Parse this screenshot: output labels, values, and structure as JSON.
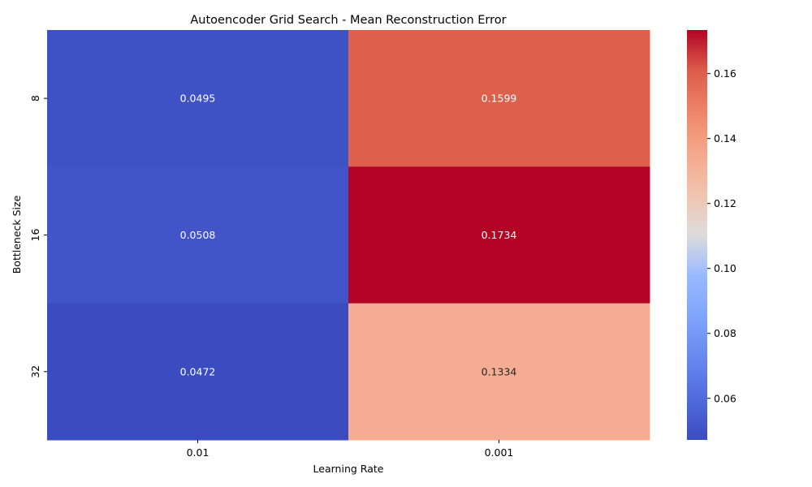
{
  "chart_data": {
    "type": "heatmap",
    "title": "Autoencoder Grid Search - Mean Reconstruction Error",
    "xlabel": "Learning Rate",
    "ylabel": "Bottleneck Size",
    "x_categories": [
      "0.01",
      "0.001"
    ],
    "y_categories": [
      "8",
      "16",
      "32"
    ],
    "values": [
      [
        0.0495,
        0.1599
      ],
      [
        0.0508,
        0.1734
      ],
      [
        0.0472,
        0.1334
      ]
    ],
    "cell_labels": [
      [
        "0.0495",
        "0.1599"
      ],
      [
        "0.0508",
        "0.1734"
      ],
      [
        "0.0472",
        "0.1334"
      ]
    ],
    "colormap": "coolwarm",
    "colorbar": {
      "range": [
        0.0472,
        0.1734
      ],
      "ticks": [
        0.06,
        0.08,
        0.1,
        0.12,
        0.14,
        0.16
      ],
      "tick_labels": [
        "0.06",
        "0.08",
        "0.10",
        "0.12",
        "0.14",
        "0.16"
      ]
    }
  }
}
